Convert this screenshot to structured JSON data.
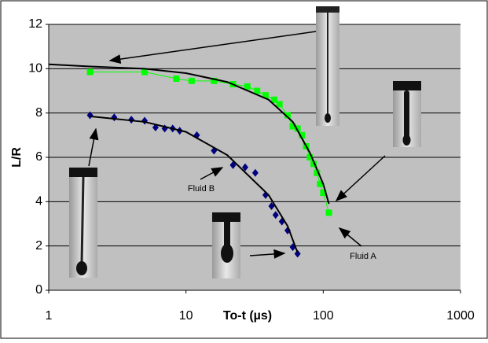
{
  "chart_data": {
    "type": "scatter",
    "xlabel": "To-t (µs)",
    "ylabel": "L/R",
    "xscale": "log",
    "xlim": [
      1,
      1000
    ],
    "xticks": [
      1,
      10,
      100,
      1000
    ],
    "ylim": [
      0,
      12
    ],
    "yticks": [
      0,
      2,
      4,
      6,
      8,
      10,
      12
    ],
    "grid": true,
    "series": [
      {
        "color": "#00ff00",
        "marker": "square",
        "line": true,
        "x": [
          2,
          5,
          8.5,
          11,
          16,
          22,
          28,
          33,
          38,
          44,
          48,
          55,
          60,
          65,
          70,
          75,
          80,
          85,
          90,
          95,
          100,
          110
        ],
        "values": [
          9.85,
          9.85,
          9.55,
          9.45,
          9.45,
          9.3,
          9.2,
          9.0,
          8.8,
          8.6,
          8.4,
          7.9,
          7.4,
          7.3,
          7.0,
          6.5,
          6.0,
          5.7,
          5.3,
          4.8,
          4.4,
          3.5
        ]
      },
      {
        "color": "#000080",
        "marker": "diamond",
        "line": false,
        "x": [
          2,
          3,
          4,
          5,
          6,
          7,
          8,
          9,
          12,
          16,
          22,
          27,
          32,
          38,
          42,
          45,
          50,
          55,
          60,
          65
        ],
        "values": [
          7.9,
          7.8,
          7.7,
          7.65,
          7.35,
          7.3,
          7.3,
          7.2,
          7.0,
          6.3,
          5.65,
          5.55,
          5.3,
          4.3,
          3.8,
          3.4,
          3.1,
          2.7,
          1.95,
          1.65
        ]
      },
      {
        "color": "#000000",
        "marker": "none",
        "line": true,
        "x": [
          1,
          2,
          5,
          10,
          20,
          40,
          60,
          80,
          100,
          110
        ],
        "values": [
          10.2,
          10.1,
          10.0,
          9.8,
          9.4,
          8.6,
          7.6,
          6.2,
          4.8,
          3.9
        ]
      },
      {
        "color": "#000000",
        "marker": "none",
        "line": true,
        "x": [
          2,
          5,
          10,
          20,
          40,
          55,
          65
        ],
        "values": [
          7.85,
          7.6,
          7.15,
          6.1,
          4.3,
          2.9,
          1.7
        ]
      }
    ],
    "annotations": [
      "Fluid B",
      "Fluid A"
    ]
  }
}
